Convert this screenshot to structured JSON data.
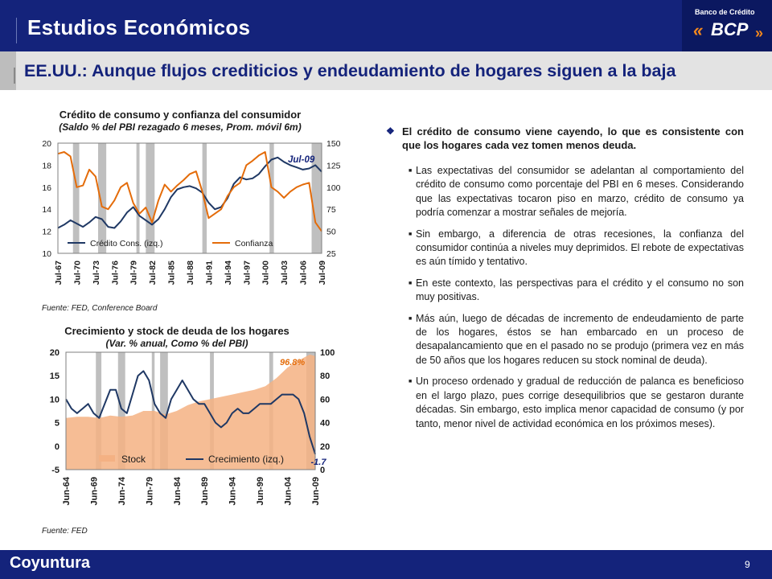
{
  "header": {
    "title": "Estudios Económicos",
    "bank_name": "Banco de Crédito",
    "logo_text": "BCP",
    "logo_chevrons": "«",
    "logo_dot": "»"
  },
  "subtitle": "EE.UU.: Aunque flujos crediticios y endeudamiento de hogares siguen a la baja",
  "chart1": {
    "title": "Crédito de consumo y confianza del consumidor",
    "subtitle": "(Saldo % del PBI rezagado 6 meses, Prom. móvil 6m)",
    "source": "Fuente: FED, Conference  Board"
  },
  "chart2": {
    "title": "Crecimiento y stock de deuda de los hogares",
    "subtitle": "(Var. % anual, Como % del PBI)",
    "source": "Fuente: FED"
  },
  "chart_data": [
    {
      "type": "line",
      "title": "Crédito de consumo y confianza del consumidor",
      "subtitle": "(Saldo % del PBI rezagado 6 meses, Prom. móvil 6m)",
      "x_tick_labels": [
        "Jul-67",
        "Jul-70",
        "Jul-73",
        "Jul-76",
        "Jul-79",
        "Jul-82",
        "Jul-85",
        "Jul-88",
        "Jul-91",
        "Jul-94",
        "Jul-97",
        "Jul-00",
        "Jul-03",
        "Jul-06",
        "Jul-09"
      ],
      "x_range": [
        1967.5,
        2009.5
      ],
      "y_left": {
        "range": [
          10,
          20
        ],
        "ticks": [
          "10",
          "12",
          "14",
          "16",
          "18",
          "20"
        ]
      },
      "y_right": {
        "range": [
          25,
          150
        ],
        "ticks": [
          "25",
          "50",
          "75",
          "100",
          "125",
          "150"
        ]
      },
      "recessions": [
        [
          1969.9,
          1970.9
        ],
        [
          1973.9,
          1975.2
        ],
        [
          1980.0,
          1980.5
        ],
        [
          1981.5,
          1982.9
        ],
        [
          1990.5,
          1991.2
        ],
        [
          2001.2,
          2001.9
        ],
        [
          2007.9,
          2009.5
        ]
      ],
      "annotation": {
        "text": "Jul-09",
        "color": "#14237b"
      },
      "series": [
        {
          "name": "Crédito Cons. (izq.)",
          "axis": "left",
          "color": "#1f3864",
          "x": [
            1967.5,
            1968.5,
            1969.5,
            1970.5,
            1971.5,
            1972.5,
            1973.5,
            1974.5,
            1975.5,
            1976.5,
            1977.5,
            1978.5,
            1979.5,
            1980.5,
            1981.5,
            1982.5,
            1983.5,
            1984.5,
            1985.5,
            1986.5,
            1987.5,
            1988.5,
            1989.5,
            1990.5,
            1991.5,
            1992.5,
            1993.5,
            1994.5,
            1995.5,
            1996.5,
            1997.5,
            1998.5,
            1999.5,
            2000.5,
            2001.5,
            2002.5,
            2003.5,
            2004.5,
            2005.5,
            2006.5,
            2007.5,
            2008.5,
            2009.5
          ],
          "values": [
            12.3,
            12.6,
            13.0,
            12.7,
            12.4,
            12.8,
            13.3,
            13.1,
            12.4,
            12.3,
            12.9,
            13.7,
            14.2,
            13.4,
            13.0,
            12.6,
            13.1,
            14.0,
            15.1,
            15.8,
            16.0,
            16.1,
            15.9,
            15.5,
            14.6,
            14.0,
            14.2,
            15.0,
            16.3,
            16.9,
            16.7,
            16.8,
            17.2,
            17.9,
            18.5,
            18.7,
            18.3,
            18.0,
            17.8,
            17.6,
            17.7,
            18.0,
            17.4
          ]
        },
        {
          "name": "Confianza",
          "axis": "right",
          "color": "#e46c0a",
          "x": [
            1967.5,
            1968.5,
            1969.5,
            1970.5,
            1971.5,
            1972.5,
            1973.5,
            1974.5,
            1975.5,
            1976.5,
            1977.5,
            1978.5,
            1979.5,
            1980.5,
            1981.5,
            1982.5,
            1983.5,
            1984.5,
            1985.5,
            1986.5,
            1987.5,
            1988.5,
            1989.5,
            1990.5,
            1991.5,
            1992.5,
            1993.5,
            1994.5,
            1995.5,
            1996.5,
            1997.5,
            1998.5,
            1999.5,
            2000.5,
            2001.5,
            2002.5,
            2003.5,
            2004.5,
            2005.5,
            2006.5,
            2007.5,
            2008.5,
            2009.5
          ],
          "values": [
            138,
            140,
            135,
            100,
            102,
            120,
            112,
            78,
            75,
            85,
            100,
            105,
            82,
            70,
            77,
            60,
            85,
            103,
            95,
            102,
            108,
            115,
            118,
            95,
            65,
            70,
            75,
            90,
            100,
            105,
            125,
            130,
            136,
            140,
            100,
            95,
            88,
            95,
            100,
            103,
            105,
            60,
            50
          ]
        }
      ]
    },
    {
      "type": "area",
      "title": "Crecimiento y stock de deuda de los hogares",
      "subtitle": "(Var. % anual, Como % del PBI)",
      "x_tick_labels": [
        "Jun-64",
        "Jun-69",
        "Jun-74",
        "Jun-79",
        "Jun-84",
        "Jun-89",
        "Jun-94",
        "Jun-99",
        "Jun-04",
        "Jun-09"
      ],
      "x_range": [
        1964.5,
        2009.5
      ],
      "y_left": {
        "range": [
          -5,
          20
        ],
        "ticks": [
          "-5",
          "0",
          "5",
          "10",
          "15",
          "20"
        ]
      },
      "y_right": {
        "range": [
          0,
          100
        ],
        "ticks": [
          "0",
          "20",
          "40",
          "60",
          "80",
          "100"
        ]
      },
      "recessions": [
        [
          1969.9,
          1970.9
        ],
        [
          1973.9,
          1975.2
        ],
        [
          1980.0,
          1980.5
        ],
        [
          1981.5,
          1982.9
        ],
        [
          1990.5,
          1991.2
        ],
        [
          2001.2,
          2001.9
        ],
        [
          2007.9,
          2009.5
        ]
      ],
      "annotations": [
        {
          "text": "96.8%",
          "color": "#e46c0a"
        },
        {
          "text": "-1.7",
          "color": "#14237b"
        }
      ],
      "series": [
        {
          "name": "Stock",
          "axis": "right",
          "type": "area",
          "color": "#f4b183",
          "x": [
            1964.5,
            1966.5,
            1968.5,
            1970.5,
            1972.5,
            1974.5,
            1976.5,
            1978.5,
            1980.5,
            1982.5,
            1984.5,
            1986.5,
            1988.5,
            1990.5,
            1992.5,
            1994.5,
            1996.5,
            1998.5,
            2000.5,
            2002.5,
            2004.5,
            2006.5,
            2008.5,
            2009.5
          ],
          "values": [
            44,
            45,
            45,
            44,
            46,
            45,
            46,
            50,
            50,
            47,
            50,
            55,
            58,
            60,
            62,
            64,
            66,
            68,
            71,
            78,
            87,
            93,
            98,
            96.8
          ]
        },
        {
          "name": "Crecimiento (izq.)",
          "axis": "left",
          "type": "line",
          "color": "#1f3864",
          "x": [
            1964.5,
            1965.5,
            1966.5,
            1967.5,
            1968.5,
            1969.5,
            1970.5,
            1971.5,
            1972.5,
            1973.5,
            1974.5,
            1975.5,
            1976.5,
            1977.5,
            1978.5,
            1979.5,
            1980.5,
            1981.5,
            1982.5,
            1983.5,
            1984.5,
            1985.5,
            1986.5,
            1987.5,
            1988.5,
            1989.5,
            1990.5,
            1991.5,
            1992.5,
            1993.5,
            1994.5,
            1995.5,
            1996.5,
            1997.5,
            1998.5,
            1999.5,
            2000.5,
            2001.5,
            2002.5,
            2003.5,
            2004.5,
            2005.5,
            2006.5,
            2007.5,
            2008.5,
            2009.5
          ],
          "values": [
            10,
            8,
            7,
            8,
            9,
            7,
            6,
            9,
            12,
            12,
            8,
            7,
            11,
            15,
            16,
            14,
            9,
            7,
            6,
            10,
            12,
            14,
            12,
            10,
            9,
            9,
            7,
            5,
            4,
            5,
            7,
            8,
            7,
            7,
            8,
            9,
            9,
            9,
            10,
            11,
            11,
            11,
            10,
            7,
            2,
            -1.7
          ]
        }
      ]
    }
  ],
  "bullets": {
    "main": "El crédito de consumo viene cayendo, lo que es consistente con que los hogares cada vez tomen menos deuda.",
    "subs": [
      "Las expectativas del consumidor se adelantan al comportamiento del crédito de consumo como porcentaje del PBI en 6 meses. Considerando que las expectativas tocaron piso en marzo,  crédito de consumo ya podría comenzar a mostrar señales de mejoría.",
      "Sin embargo, a diferencia de otras recesiones, la confianza del consumidor continúa a niveles muy deprimidos. El rebote de expectativas es aún tímido y tentativo.",
      "En este contexto, las perspectivas para el crédito y el consumo no son muy positivas.",
      "Más aún, luego de décadas de incremento de endeudamiento de parte de los hogares, éstos se han embarcado en un proceso de desapalancamiento que en el pasado no se produjo (primera vez en más de 50 años que los hogares reducen su stock nominal de deuda).",
      "Un proceso ordenado y gradual de reducción de palanca es beneficioso en el largo plazo, pues corrige desequilibrios que se gestaron durante décadas. Sin embargo, esto implica menor capacidad de consumo (y por tanto, menor nivel de actividad económica en los próximos meses)."
    ]
  },
  "footer": {
    "label": "Coyuntura",
    "page_number": "9"
  }
}
